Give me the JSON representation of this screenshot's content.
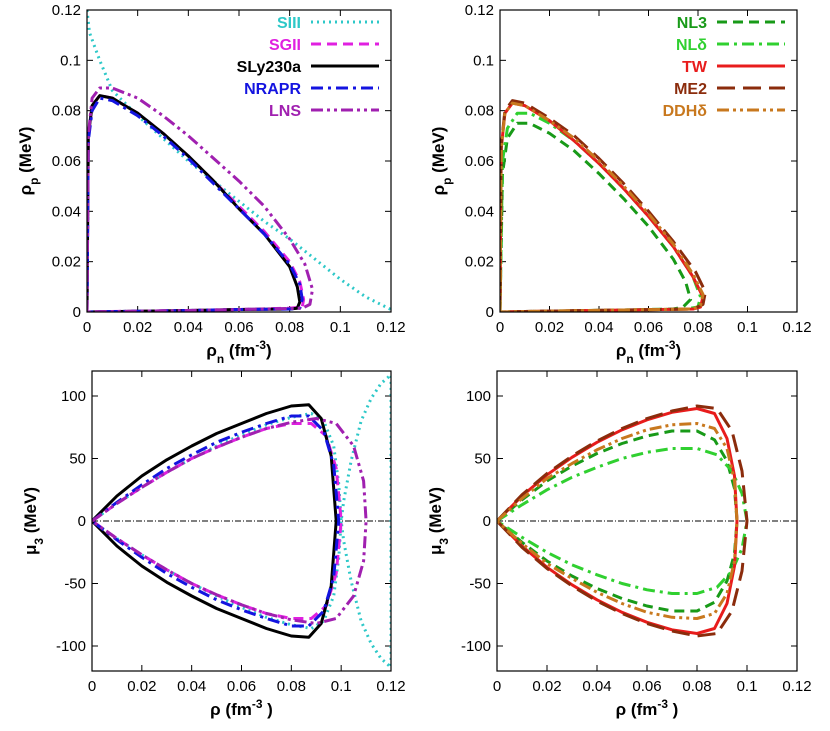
{
  "chart_data": [
    {
      "type": "line",
      "panel": "top-left",
      "xlabel": "ρn (fm⁻³)",
      "ylabel": "ρp (MeV)",
      "xlim": [
        0,
        0.12
      ],
      "ylim": [
        0,
        0.12
      ],
      "xticks": [
        "0",
        "0.02",
        "0.04",
        "0.06",
        "0.08",
        "0.1",
        "0.12"
      ],
      "yticks": [
        "0",
        "0.02",
        "0.04",
        "0.06",
        "0.08",
        "0.1",
        "0.12"
      ],
      "legend_position": "top-right",
      "grid": false,
      "series": [
        {
          "name": "SIII",
          "color": "#2dc8c8",
          "dash": "dotted",
          "x": [
            0,
            0.001,
            0.005,
            0.01,
            0.02,
            0.03,
            0.04,
            0.05,
            0.06,
            0.07,
            0.08,
            0.09,
            0.1,
            0.11,
            0.12
          ],
          "y": [
            0.12,
            0.111,
            0.1,
            0.088,
            0.078,
            0.069,
            0.06,
            0.052,
            0.044,
            0.036,
            0.029,
            0.021,
            0.013,
            0.006,
            0.001
          ]
        },
        {
          "name": "SGII",
          "color": "#e020e0",
          "dash": "dashed",
          "x": [
            0,
            0.0005,
            0.002,
            0.005,
            0.01,
            0.02,
            0.03,
            0.04,
            0.05,
            0.06,
            0.07,
            0.08,
            0.084,
            0.0855,
            0.085,
            0.08,
            0.06,
            0.04,
            0.02,
            0.005,
            0
          ],
          "y": [
            0,
            0.07,
            0.082,
            0.086,
            0.085,
            0.079,
            0.071,
            0.062,
            0.052,
            0.042,
            0.032,
            0.02,
            0.012,
            0.005,
            0.002,
            0.0015,
            0.001,
            0.0006,
            0.0003,
            0.0001,
            0
          ]
        },
        {
          "name": "SLy230a",
          "color": "#000000",
          "dash": "solid",
          "x": [
            0,
            0.0005,
            0.002,
            0.005,
            0.01,
            0.02,
            0.03,
            0.04,
            0.05,
            0.06,
            0.07,
            0.08,
            0.083,
            0.084,
            0.083,
            0.08,
            0.06,
            0.04,
            0.02,
            0.005,
            0
          ],
          "y": [
            0,
            0.07,
            0.082,
            0.086,
            0.085,
            0.079,
            0.071,
            0.062,
            0.052,
            0.041,
            0.031,
            0.018,
            0.01,
            0.004,
            0.0015,
            0.0012,
            0.001,
            0.0006,
            0.0003,
            0.0001,
            0
          ]
        },
        {
          "name": "NRAPR",
          "color": "#1414e0",
          "dash": "dashdot",
          "x": [
            0,
            0.0005,
            0.002,
            0.005,
            0.01,
            0.02,
            0.03,
            0.04,
            0.05,
            0.06,
            0.07,
            0.08,
            0.084,
            0.085,
            0.084,
            0.08,
            0.06,
            0.04,
            0.02,
            0.005,
            0
          ],
          "y": [
            0,
            0.068,
            0.08,
            0.085,
            0.084,
            0.078,
            0.07,
            0.061,
            0.051,
            0.041,
            0.031,
            0.019,
            0.011,
            0.005,
            0.0015,
            0.0012,
            0.001,
            0.0006,
            0.0003,
            0.0001,
            0
          ]
        },
        {
          "name": "LNS",
          "color": "#a020b0",
          "dash": "dashdotdot",
          "x": [
            0,
            0.0005,
            0.002,
            0.005,
            0.01,
            0.02,
            0.03,
            0.04,
            0.05,
            0.06,
            0.07,
            0.08,
            0.086,
            0.089,
            0.088,
            0.085,
            0.06,
            0.04,
            0.02,
            0.005,
            0
          ],
          "y": [
            0,
            0.07,
            0.085,
            0.089,
            0.089,
            0.085,
            0.078,
            0.07,
            0.061,
            0.052,
            0.042,
            0.029,
            0.019,
            0.009,
            0.003,
            0.0015,
            0.001,
            0.0006,
            0.0003,
            0.0001,
            0
          ]
        }
      ]
    },
    {
      "type": "line",
      "panel": "top-right",
      "xlabel": "ρn (fm⁻³)",
      "ylabel": "ρp (MeV)",
      "xlim": [
        0,
        0.12
      ],
      "ylim": [
        0,
        0.12
      ],
      "xticks": [
        "0",
        "0.02",
        "0.04",
        "0.06",
        "0.08",
        "0.1",
        "0.12"
      ],
      "yticks": [
        "0",
        "0.02",
        "0.04",
        "0.06",
        "0.08",
        "0.1",
        "0.12"
      ],
      "legend_position": "top-right",
      "grid": false,
      "series": [
        {
          "name": "NL3",
          "color": "#189a18",
          "dash": "dashed",
          "x": [
            0,
            0.001,
            0.003,
            0.007,
            0.012,
            0.02,
            0.03,
            0.04,
            0.05,
            0.06,
            0.07,
            0.075,
            0.077,
            0.074,
            0.07,
            0.05,
            0.03,
            0.01,
            0
          ],
          "y": [
            0,
            0.055,
            0.069,
            0.075,
            0.075,
            0.071,
            0.064,
            0.055,
            0.045,
            0.034,
            0.021,
            0.012,
            0.005,
            0.002,
            0.0012,
            0.0008,
            0.0005,
            0.0002,
            0
          ]
        },
        {
          "name": "NLδ",
          "color": "#30d030",
          "dash": "dashdot",
          "x": [
            0,
            0.001,
            0.003,
            0.007,
            0.012,
            0.02,
            0.03,
            0.04,
            0.05,
            0.06,
            0.07,
            0.078,
            0.081,
            0.08,
            0.075,
            0.05,
            0.03,
            0.01,
            0
          ],
          "y": [
            0,
            0.06,
            0.073,
            0.079,
            0.079,
            0.075,
            0.068,
            0.059,
            0.049,
            0.038,
            0.026,
            0.014,
            0.006,
            0.002,
            0.0012,
            0.0008,
            0.0005,
            0.0002,
            0
          ]
        },
        {
          "name": "TW",
          "color": "#e81c1c",
          "dash": "solid",
          "x": [
            0,
            0.0005,
            0.002,
            0.005,
            0.01,
            0.02,
            0.03,
            0.04,
            0.05,
            0.06,
            0.07,
            0.078,
            0.082,
            0.081,
            0.078,
            0.05,
            0.03,
            0.01,
            0
          ],
          "y": [
            0,
            0.065,
            0.079,
            0.083,
            0.082,
            0.076,
            0.068,
            0.059,
            0.049,
            0.038,
            0.026,
            0.014,
            0.006,
            0.002,
            0.0012,
            0.0008,
            0.0005,
            0.0002,
            0
          ]
        },
        {
          "name": "ME2",
          "color": "#8b2c0c",
          "dash": "longdash",
          "x": [
            0,
            0.0005,
            0.002,
            0.005,
            0.01,
            0.02,
            0.03,
            0.04,
            0.05,
            0.06,
            0.07,
            0.079,
            0.083,
            0.082,
            0.078,
            0.05,
            0.03,
            0.01,
            0
          ],
          "y": [
            0,
            0.066,
            0.08,
            0.084,
            0.083,
            0.077,
            0.07,
            0.061,
            0.051,
            0.04,
            0.028,
            0.016,
            0.008,
            0.003,
            0.0012,
            0.0008,
            0.0005,
            0.0002,
            0
          ]
        },
        {
          "name": "DDHδ",
          "color": "#c8781e",
          "dash": "dashdotdot",
          "x": [
            0,
            0.0005,
            0.002,
            0.005,
            0.01,
            0.02,
            0.03,
            0.04,
            0.05,
            0.06,
            0.07,
            0.078,
            0.082,
            0.081,
            0.078,
            0.05,
            0.03,
            0.01,
            0
          ],
          "y": [
            0,
            0.065,
            0.079,
            0.083,
            0.082,
            0.076,
            0.069,
            0.06,
            0.05,
            0.039,
            0.027,
            0.015,
            0.007,
            0.0025,
            0.0012,
            0.0008,
            0.0005,
            0.0002,
            0
          ]
        }
      ]
    },
    {
      "type": "line",
      "panel": "bottom-left",
      "xlabel": "ρ (fm⁻³ )",
      "ylabel": "μ3 (MeV)",
      "xlim": [
        0,
        0.12
      ],
      "ylim": [
        -120,
        120
      ],
      "xticks": [
        "0",
        "0.02",
        "0.04",
        "0.06",
        "0.08",
        "0.1",
        "0.12"
      ],
      "yticks": [
        "-100",
        "-50",
        "0",
        "50",
        "100"
      ],
      "zero_line": true,
      "grid": false,
      "series": [
        {
          "name": "SIII",
          "color": "#2dc8c8",
          "dash": "dotted",
          "x": [
            0,
            0.01,
            0.02,
            0.03,
            0.04,
            0.05,
            0.06,
            0.07,
            0.08,
            0.088,
            0.093,
            0.097,
            0.099,
            0.1,
            0.101,
            0.104,
            0.108,
            0.112,
            0.116,
            0.12
          ],
          "y": [
            0,
            14,
            27,
            39,
            50,
            60,
            69,
            77,
            83,
            86,
            80,
            60,
            30,
            0,
            16,
            48,
            80,
            98,
            110,
            117
          ],
          "mirror": true
        },
        {
          "name": "SGII",
          "color": "#e020e0",
          "dash": "dashed",
          "x": [
            0,
            0.01,
            0.02,
            0.03,
            0.04,
            0.05,
            0.06,
            0.07,
            0.08,
            0.088,
            0.094,
            0.098,
            0.1
          ],
          "y": [
            0,
            14,
            27,
            39,
            50,
            59,
            67,
            74,
            78,
            78,
            68,
            42,
            0
          ],
          "mirror": true
        },
        {
          "name": "SLy230a",
          "color": "#000000",
          "dash": "solid",
          "x": [
            0,
            0.01,
            0.02,
            0.03,
            0.04,
            0.05,
            0.06,
            0.07,
            0.08,
            0.087,
            0.092,
            0.096,
            0.098
          ],
          "y": [
            0,
            20,
            36,
            49,
            60,
            70,
            78,
            86,
            92,
            93,
            82,
            52,
            0
          ],
          "mirror": true
        },
        {
          "name": "NRAPR",
          "color": "#1414e0",
          "dash": "dashdot",
          "x": [
            0,
            0.01,
            0.02,
            0.03,
            0.04,
            0.05,
            0.06,
            0.07,
            0.08,
            0.087,
            0.093,
            0.097,
            0.099
          ],
          "y": [
            0,
            15,
            29,
            42,
            53,
            63,
            71,
            78,
            84,
            84,
            72,
            45,
            0
          ],
          "mirror": true
        },
        {
          "name": "LNS",
          "color": "#a020b0",
          "dash": "dashdotdot",
          "x": [
            0,
            0.01,
            0.02,
            0.03,
            0.04,
            0.05,
            0.06,
            0.07,
            0.08,
            0.09,
            0.098,
            0.105,
            0.109,
            0.11
          ],
          "y": [
            0,
            14,
            27,
            39,
            50,
            59,
            67,
            74,
            79,
            82,
            78,
            60,
            32,
            0
          ],
          "mirror": true
        }
      ]
    },
    {
      "type": "line",
      "panel": "bottom-right",
      "xlabel": "ρ (fm⁻³ )",
      "ylabel": "μ3 (MeV)",
      "xlim": [
        0,
        0.12
      ],
      "ylim": [
        -120,
        120
      ],
      "xticks": [
        "0",
        "0.02",
        "0.04",
        "0.06",
        "0.08",
        "0.1",
        "0.12"
      ],
      "yticks": [
        "-100",
        "-50",
        "0",
        "50",
        "100"
      ],
      "zero_line": true,
      "grid": false,
      "series": [
        {
          "name": "NL3",
          "color": "#189a18",
          "dash": "dashed",
          "x": [
            0,
            0.01,
            0.02,
            0.03,
            0.04,
            0.05,
            0.06,
            0.07,
            0.08,
            0.087,
            0.092,
            0.095,
            0.096
          ],
          "y": [
            0,
            17,
            32,
            44,
            54,
            62,
            68,
            72,
            72,
            65,
            48,
            26,
            0
          ],
          "mirror": true
        },
        {
          "name": "NLδ",
          "color": "#30d030",
          "dash": "dashdot",
          "x": [
            0,
            0.01,
            0.02,
            0.03,
            0.04,
            0.05,
            0.06,
            0.07,
            0.08,
            0.088,
            0.094,
            0.098,
            0.1
          ],
          "y": [
            0,
            13,
            25,
            35,
            43,
            50,
            55,
            58,
            58,
            53,
            40,
            22,
            0
          ],
          "mirror": true
        },
        {
          "name": "TW",
          "color": "#e81c1c",
          "dash": "solid",
          "x": [
            0,
            0.01,
            0.02,
            0.03,
            0.04,
            0.05,
            0.06,
            0.07,
            0.08,
            0.087,
            0.092,
            0.095,
            0.096
          ],
          "y": [
            0,
            20,
            37,
            51,
            63,
            73,
            81,
            87,
            90,
            86,
            66,
            36,
            0
          ],
          "mirror": true
        },
        {
          "name": "ME2",
          "color": "#8b2c0c",
          "dash": "longdash",
          "x": [
            0,
            0.01,
            0.02,
            0.03,
            0.04,
            0.05,
            0.06,
            0.07,
            0.08,
            0.088,
            0.094,
            0.098,
            0.1
          ],
          "y": [
            0,
            21,
            38,
            52,
            64,
            74,
            82,
            88,
            92,
            90,
            72,
            40,
            0
          ],
          "mirror": true
        },
        {
          "name": "DDHδ",
          "color": "#c8781e",
          "dash": "dashdotdot",
          "x": [
            0,
            0.01,
            0.02,
            0.03,
            0.04,
            0.05,
            0.06,
            0.07,
            0.08,
            0.087,
            0.092,
            0.095,
            0.096
          ],
          "y": [
            0,
            18,
            34,
            46,
            57,
            66,
            73,
            77,
            78,
            74,
            58,
            32,
            0
          ],
          "mirror": true
        }
      ]
    }
  ]
}
